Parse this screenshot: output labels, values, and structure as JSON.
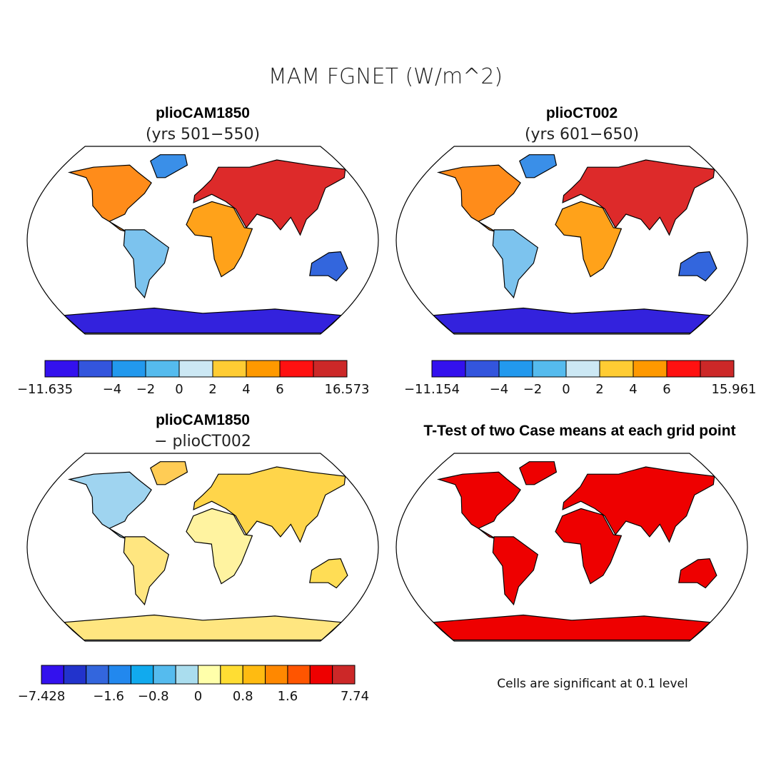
{
  "title": "MAM FGNET (W/m^2)",
  "panels": [
    {
      "title": "plioCAM1850",
      "subtitle": "(yrs 501−550)",
      "colorbar": {
        "colors": [
          "#3311ee",
          "#3355dd",
          "#2299ee",
          "#55bbee",
          "#cce8f4",
          "#ffcc33",
          "#ff9900",
          "#ff1111",
          "#cc2828"
        ],
        "boundary_labels": [
          "−11.635",
          null,
          "−4",
          "−2",
          "0",
          "2",
          "4",
          "6",
          null,
          "16.573"
        ]
      }
    },
    {
      "title": "plioCT002",
      "subtitle": "(yrs 601−650)",
      "colorbar": {
        "colors": [
          "#3311ee",
          "#3355dd",
          "#2299ee",
          "#55bbee",
          "#cce8f4",
          "#ffcc33",
          "#ff9900",
          "#ff1111",
          "#cc2828"
        ],
        "boundary_labels": [
          "−11.154",
          null,
          "−4",
          "−2",
          "0",
          "2",
          "4",
          "6",
          null,
          "15.961"
        ]
      }
    },
    {
      "title": "plioCAM1850",
      "subtitle": "− plioCT002",
      "colorbar": {
        "colors": [
          "#3311ee",
          "#2233cc",
          "#3366dd",
          "#2288ee",
          "#11aaee",
          "#55bbee",
          "#aaddee",
          "#ffffaa",
          "#ffdd33",
          "#ffbb11",
          "#ff8800",
          "#ff5500",
          "#ee0000",
          "#cc2828"
        ],
        "boundary_labels": [
          "−7.428",
          null,
          null,
          "−1.6",
          null,
          "−0.8",
          null,
          "0",
          null,
          "0.8",
          null,
          "1.6",
          null,
          null,
          "7.74"
        ]
      }
    },
    {
      "title": "T-Test of two Case means at each grid point",
      "note": "Cells are significant at 0.1 level"
    }
  ]
}
